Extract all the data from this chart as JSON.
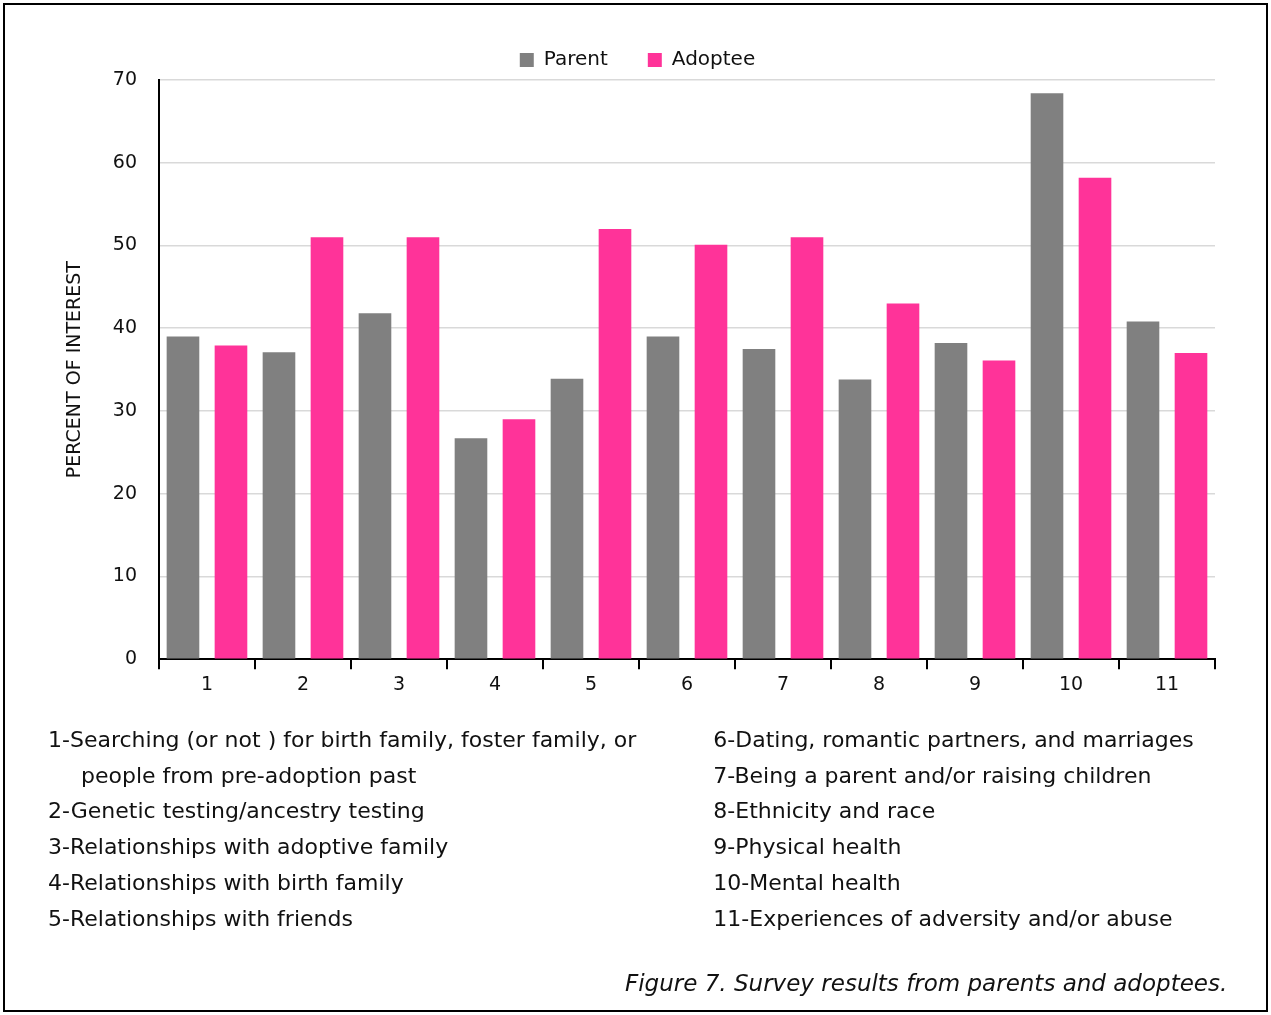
{
  "chart_data": {
    "type": "bar",
    "ylabel": "PERCENT OF INTEREST",
    "categories": [
      "1",
      "2",
      "3",
      "4",
      "5",
      "6",
      "7",
      "8",
      "9",
      "10",
      "11"
    ],
    "series": [
      {
        "name": "Parent",
        "color": "#808080",
        "values": [
          39,
          37.1,
          41.8,
          26.7,
          33.9,
          39,
          37.5,
          33.8,
          38.2,
          68.4,
          40.8
        ]
      },
      {
        "name": "Adoptee",
        "color": "#ff3399",
        "values": [
          37.9,
          51,
          51,
          29,
          52,
          50.1,
          51,
          43,
          36.1,
          58.2,
          37
        ]
      }
    ],
    "ylim": [
      0,
      70
    ],
    "yticks": [
      0,
      10,
      20,
      30,
      40,
      50,
      60,
      70
    ],
    "grid": "y",
    "legend": "top",
    "annotations": [
      "1-Searching (or not ) for birth family, foster family, or people from pre-adoption past",
      "2-Genetic testing/ancestry testing",
      "3-Relationships with adoptive family",
      "4-Relationships with birth family",
      "5-Relationships with friends",
      "6-Dating, romantic partners, and marriages",
      "7-Being a parent and/or raising children",
      "8-Ethnicity and race",
      "9-Physical health",
      "10-Mental health",
      "11-Experiences of adversity and/or abuse",
      "Figure 7. Survey results from parents and adoptees."
    ]
  }
}
